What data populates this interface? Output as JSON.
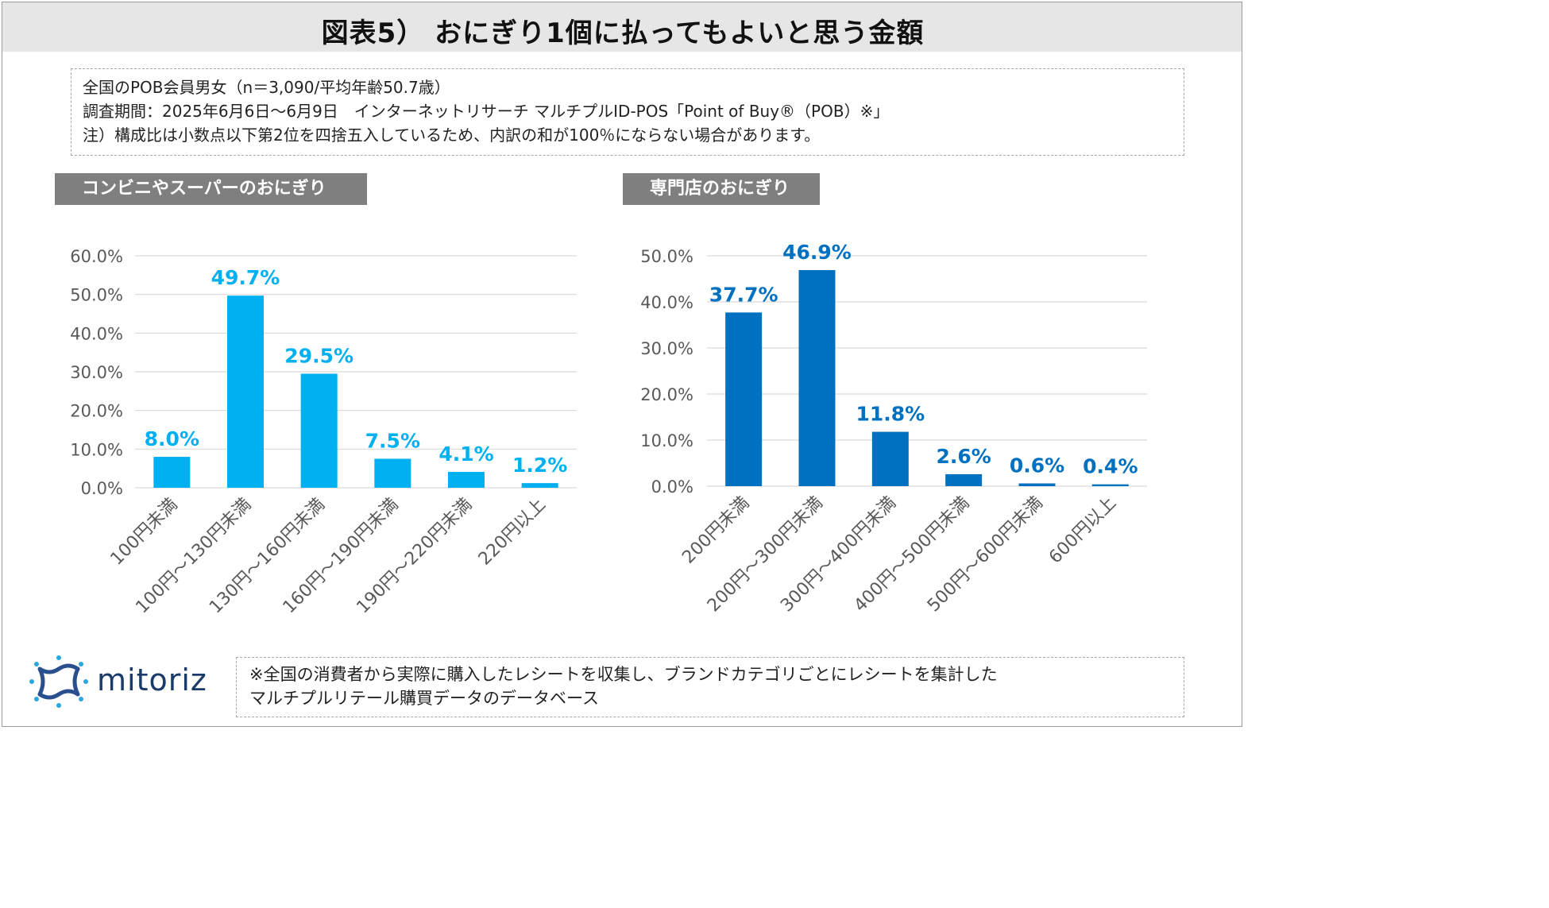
{
  "title": "図表5） おにぎり1個に払ってもよいと思う金額",
  "notes": [
    "全国のPOB会員男女（n＝3,090/平均年齢50.7歳）",
    "調査期間：2025年6月6日～6月9日　インターネットリサーチ マルチプルID-POS「Point of Buy®（POB）※」",
    "注）構成比は小数点以下第2位を四捨五入しているため、内訳の和が100％にならない場合があります。"
  ],
  "colors": {
    "left_bar": "#00b0f0",
    "right_bar": "#0070c0",
    "grid": "#d9d9d9",
    "axis_text": "#595959"
  },
  "chart_data": [
    {
      "type": "bar",
      "title": "コンビニやスーパーのおにぎり",
      "categories": [
        "100円未満",
        "100円～130円未満",
        "130円～160円未満",
        "160円～190円未満",
        "190円～220円未満",
        "220円以上"
      ],
      "values": [
        8.0,
        49.7,
        29.5,
        7.5,
        4.1,
        1.2
      ],
      "value_labels": [
        "8.0%",
        "49.7%",
        "29.5%",
        "7.5%",
        "4.1%",
        "1.2%"
      ],
      "yticks": [
        "0.0%",
        "10.0%",
        "20.0%",
        "30.0%",
        "40.0%",
        "50.0%",
        "60.0%"
      ],
      "ylim": [
        0,
        60
      ],
      "xlabel": "",
      "ylabel": ""
    },
    {
      "type": "bar",
      "title": "専門店のおにぎり",
      "categories": [
        "200円未満",
        "200円～300円未満",
        "300円～400円未満",
        "400円～500円未満",
        "500円～600円未満",
        "600円以上"
      ],
      "values": [
        37.7,
        46.9,
        11.8,
        2.6,
        0.6,
        0.4
      ],
      "value_labels": [
        "37.7%",
        "46.9%",
        "11.8%",
        "2.6%",
        "0.6%",
        "0.4%"
      ],
      "yticks": [
        "0.0%",
        "10.0%",
        "20.0%",
        "30.0%",
        "40.0%",
        "50.0%"
      ],
      "ylim": [
        0,
        50
      ],
      "xlabel": "",
      "ylabel": ""
    }
  ],
  "logo": {
    "text": "mitoriz"
  },
  "footnote": [
    "※全国の消費者から実際に購入したレシートを収集し、ブランドカテゴリごとにレシートを集計した",
    "マルチプルリテール購買データのデータベース"
  ]
}
